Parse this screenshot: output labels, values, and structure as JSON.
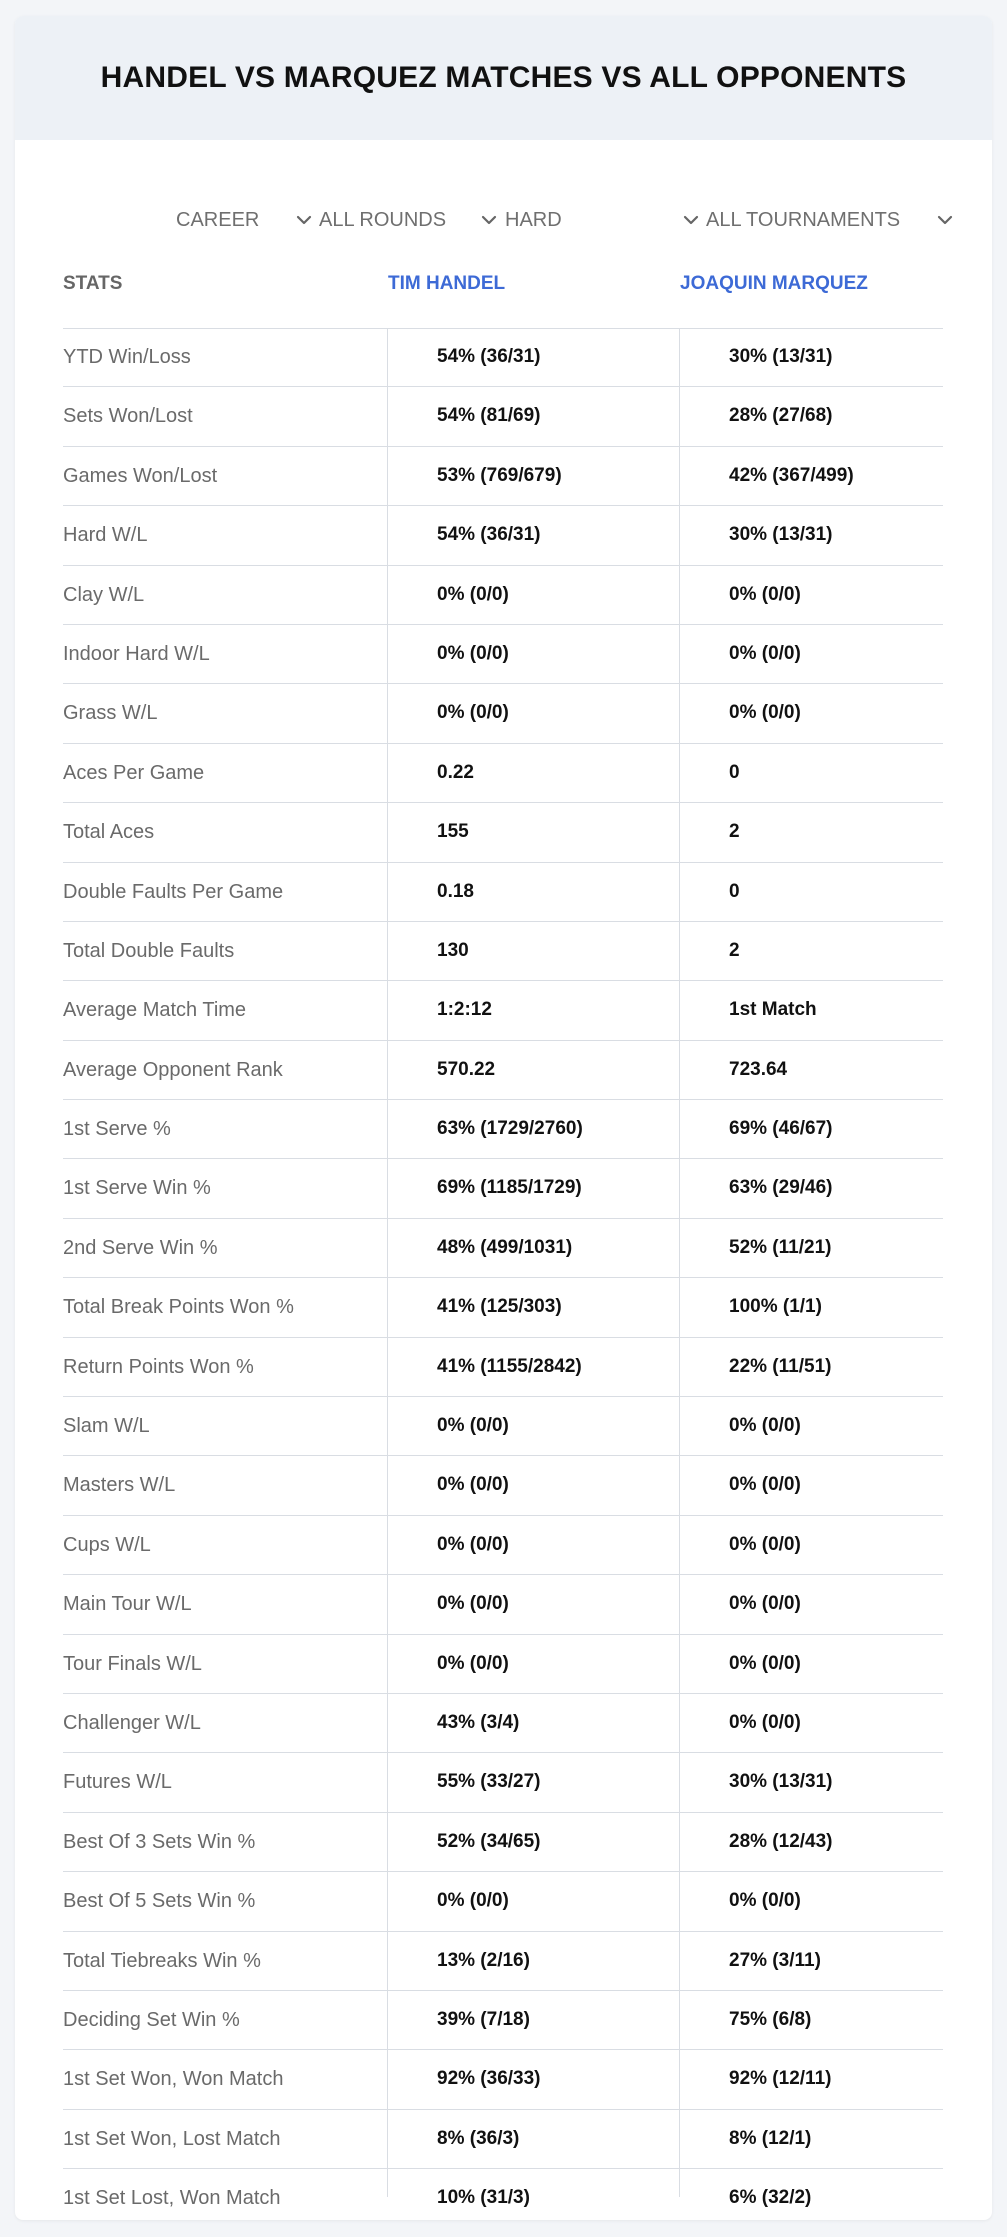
{
  "page": {
    "title": "HANDEL VS MARQUEZ MATCHES VS ALL OPPONENTS"
  },
  "filters": [
    {
      "name": "career",
      "value": "CAREER"
    },
    {
      "name": "rounds",
      "value": "ALL ROUNDS"
    },
    {
      "name": "surface",
      "value": "HARD"
    },
    {
      "name": "tournaments",
      "value": "ALL TOURNAMENTS"
    }
  ],
  "table": {
    "headers": {
      "stats": "STATS",
      "player1": "TIM HANDEL",
      "player2": "JOAQUIN MARQUEZ"
    },
    "rows": [
      {
        "label": "YTD Win/Loss",
        "p1": "54% (36/31)",
        "p2": "30% (13/31)"
      },
      {
        "label": "Sets Won/Lost",
        "p1": "54% (81/69)",
        "p2": "28% (27/68)"
      },
      {
        "label": "Games Won/Lost",
        "p1": "53% (769/679)",
        "p2": "42% (367/499)"
      },
      {
        "label": "Hard W/L",
        "p1": "54% (36/31)",
        "p2": "30% (13/31)"
      },
      {
        "label": "Clay W/L",
        "p1": "0% (0/0)",
        "p2": "0% (0/0)"
      },
      {
        "label": "Indoor Hard W/L",
        "p1": "0% (0/0)",
        "p2": "0% (0/0)"
      },
      {
        "label": "Grass W/L",
        "p1": "0% (0/0)",
        "p2": "0% (0/0)"
      },
      {
        "label": "Aces Per Game",
        "p1": "0.22",
        "p2": "0"
      },
      {
        "label": "Total Aces",
        "p1": "155",
        "p2": "2"
      },
      {
        "label": "Double Faults Per Game",
        "p1": "0.18",
        "p2": "0"
      },
      {
        "label": "Total Double Faults",
        "p1": "130",
        "p2": "2"
      },
      {
        "label": "Average Match Time",
        "p1": "1:2:12",
        "p2": "1st Match"
      },
      {
        "label": "Average Opponent Rank",
        "p1": "570.22",
        "p2": "723.64"
      },
      {
        "label": "1st Serve %",
        "p1": "63% (1729/2760)",
        "p2": "69% (46/67)"
      },
      {
        "label": "1st Serve Win %",
        "p1": "69% (1185/1729)",
        "p2": "63% (29/46)"
      },
      {
        "label": "2nd Serve Win %",
        "p1": "48% (499/1031)",
        "p2": "52% (11/21)"
      },
      {
        "label": "Total Break Points Won %",
        "p1": "41% (125/303)",
        "p2": "100% (1/1)"
      },
      {
        "label": "Return Points Won %",
        "p1": "41% (1155/2842)",
        "p2": "22% (11/51)"
      },
      {
        "label": "Slam W/L",
        "p1": "0% (0/0)",
        "p2": "0% (0/0)"
      },
      {
        "label": "Masters W/L",
        "p1": "0% (0/0)",
        "p2": "0% (0/0)"
      },
      {
        "label": "Cups W/L",
        "p1": "0% (0/0)",
        "p2": "0% (0/0)"
      },
      {
        "label": "Main Tour W/L",
        "p1": "0% (0/0)",
        "p2": "0% (0/0)"
      },
      {
        "label": "Tour Finals W/L",
        "p1": "0% (0/0)",
        "p2": "0% (0/0)"
      },
      {
        "label": "Challenger W/L",
        "p1": "43% (3/4)",
        "p2": "0% (0/0)"
      },
      {
        "label": "Futures W/L",
        "p1": "55% (33/27)",
        "p2": "30% (13/31)"
      },
      {
        "label": "Best Of 3 Sets Win %",
        "p1": "52% (34/65)",
        "p2": "28% (12/43)"
      },
      {
        "label": "Best Of 5 Sets Win %",
        "p1": "0% (0/0)",
        "p2": "0% (0/0)"
      },
      {
        "label": "Total Tiebreaks Win %",
        "p1": "13% (2/16)",
        "p2": "27% (3/11)"
      },
      {
        "label": "Deciding Set Win %",
        "p1": "39% (7/18)",
        "p2": "75% (6/8)"
      },
      {
        "label": "1st Set Won, Won Match",
        "p1": "92% (36/33)",
        "p2": "92% (12/11)"
      },
      {
        "label": "1st Set Won, Lost Match",
        "p1": "8% (36/3)",
        "p2": "8% (12/1)"
      },
      {
        "label": "1st Set Lost, Won Match",
        "p1": "10% (31/3)",
        "p2": "6% (32/2)"
      }
    ]
  }
}
